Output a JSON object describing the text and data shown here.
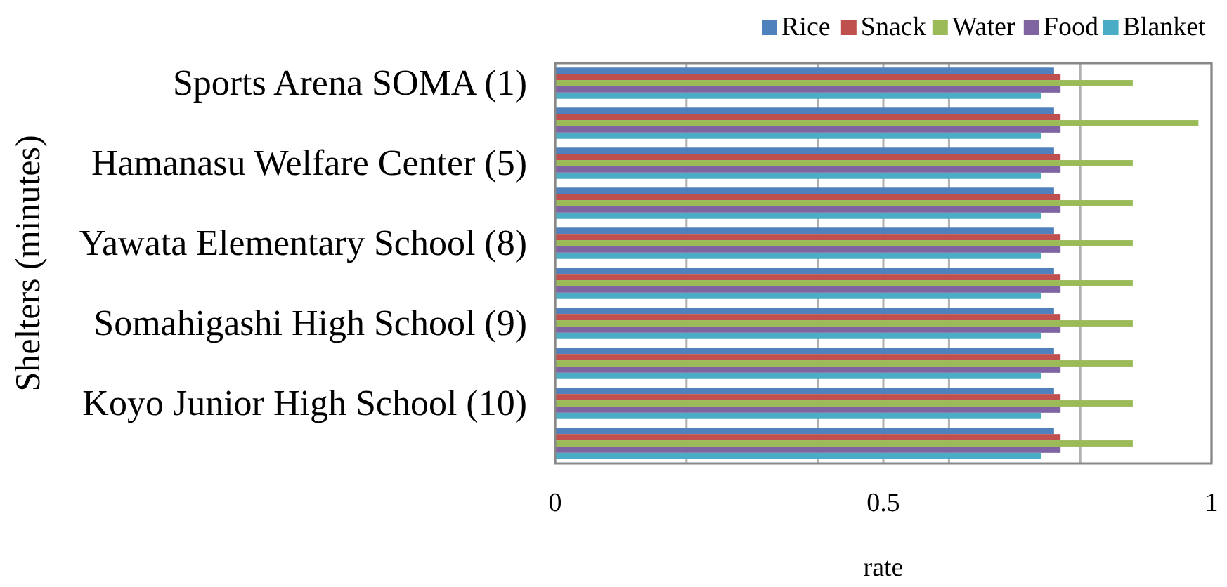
{
  "chart_data": {
    "type": "bar",
    "orientation": "horizontal",
    "xlabel": "rate",
    "ylabel": "Shelters (minutes)",
    "categories": [
      "Sports Arena SOMA (1)",
      null,
      "Hamanasu Welfare Center (5)",
      null,
      "Yawata Elementary School (8)",
      null,
      "Somahigashi High School (9)",
      null,
      "Koyo Junior High School (10)",
      null
    ],
    "series": [
      {
        "name": "Rice",
        "color": "#4f81bd",
        "values": [
          0.76,
          0.76,
          0.76,
          0.76,
          0.76,
          0.76,
          0.76,
          0.76,
          0.76,
          0.76
        ]
      },
      {
        "name": "Snack",
        "color": "#c0504d",
        "values": [
          0.77,
          0.77,
          0.77,
          0.77,
          0.77,
          0.77,
          0.77,
          0.77,
          0.77,
          0.77
        ]
      },
      {
        "name": "Water",
        "color": "#9bbb59",
        "values": [
          0.88,
          0.98,
          0.88,
          0.88,
          0.88,
          0.88,
          0.88,
          0.88,
          0.88,
          0.88
        ]
      },
      {
        "name": "Food",
        "color": "#8064a2",
        "values": [
          0.77,
          0.77,
          0.77,
          0.77,
          0.77,
          0.77,
          0.77,
          0.77,
          0.77,
          0.77
        ]
      },
      {
        "name": "Blanket",
        "color": "#4bacc6",
        "values": [
          0.74,
          0.74,
          0.74,
          0.74,
          0.74,
          0.74,
          0.74,
          0.74,
          0.74,
          0.74
        ]
      }
    ],
    "xlim": [
      0,
      1
    ],
    "xticks": [
      0,
      {
        "value": 0.2,
        "label": null
      },
      {
        "value": 0.4,
        "label": null
      },
      0.5,
      {
        "value": 0.6,
        "label": null
      },
      {
        "value": 0.8,
        "label": null
      },
      1
    ],
    "grid": "x",
    "legend": "top right"
  }
}
